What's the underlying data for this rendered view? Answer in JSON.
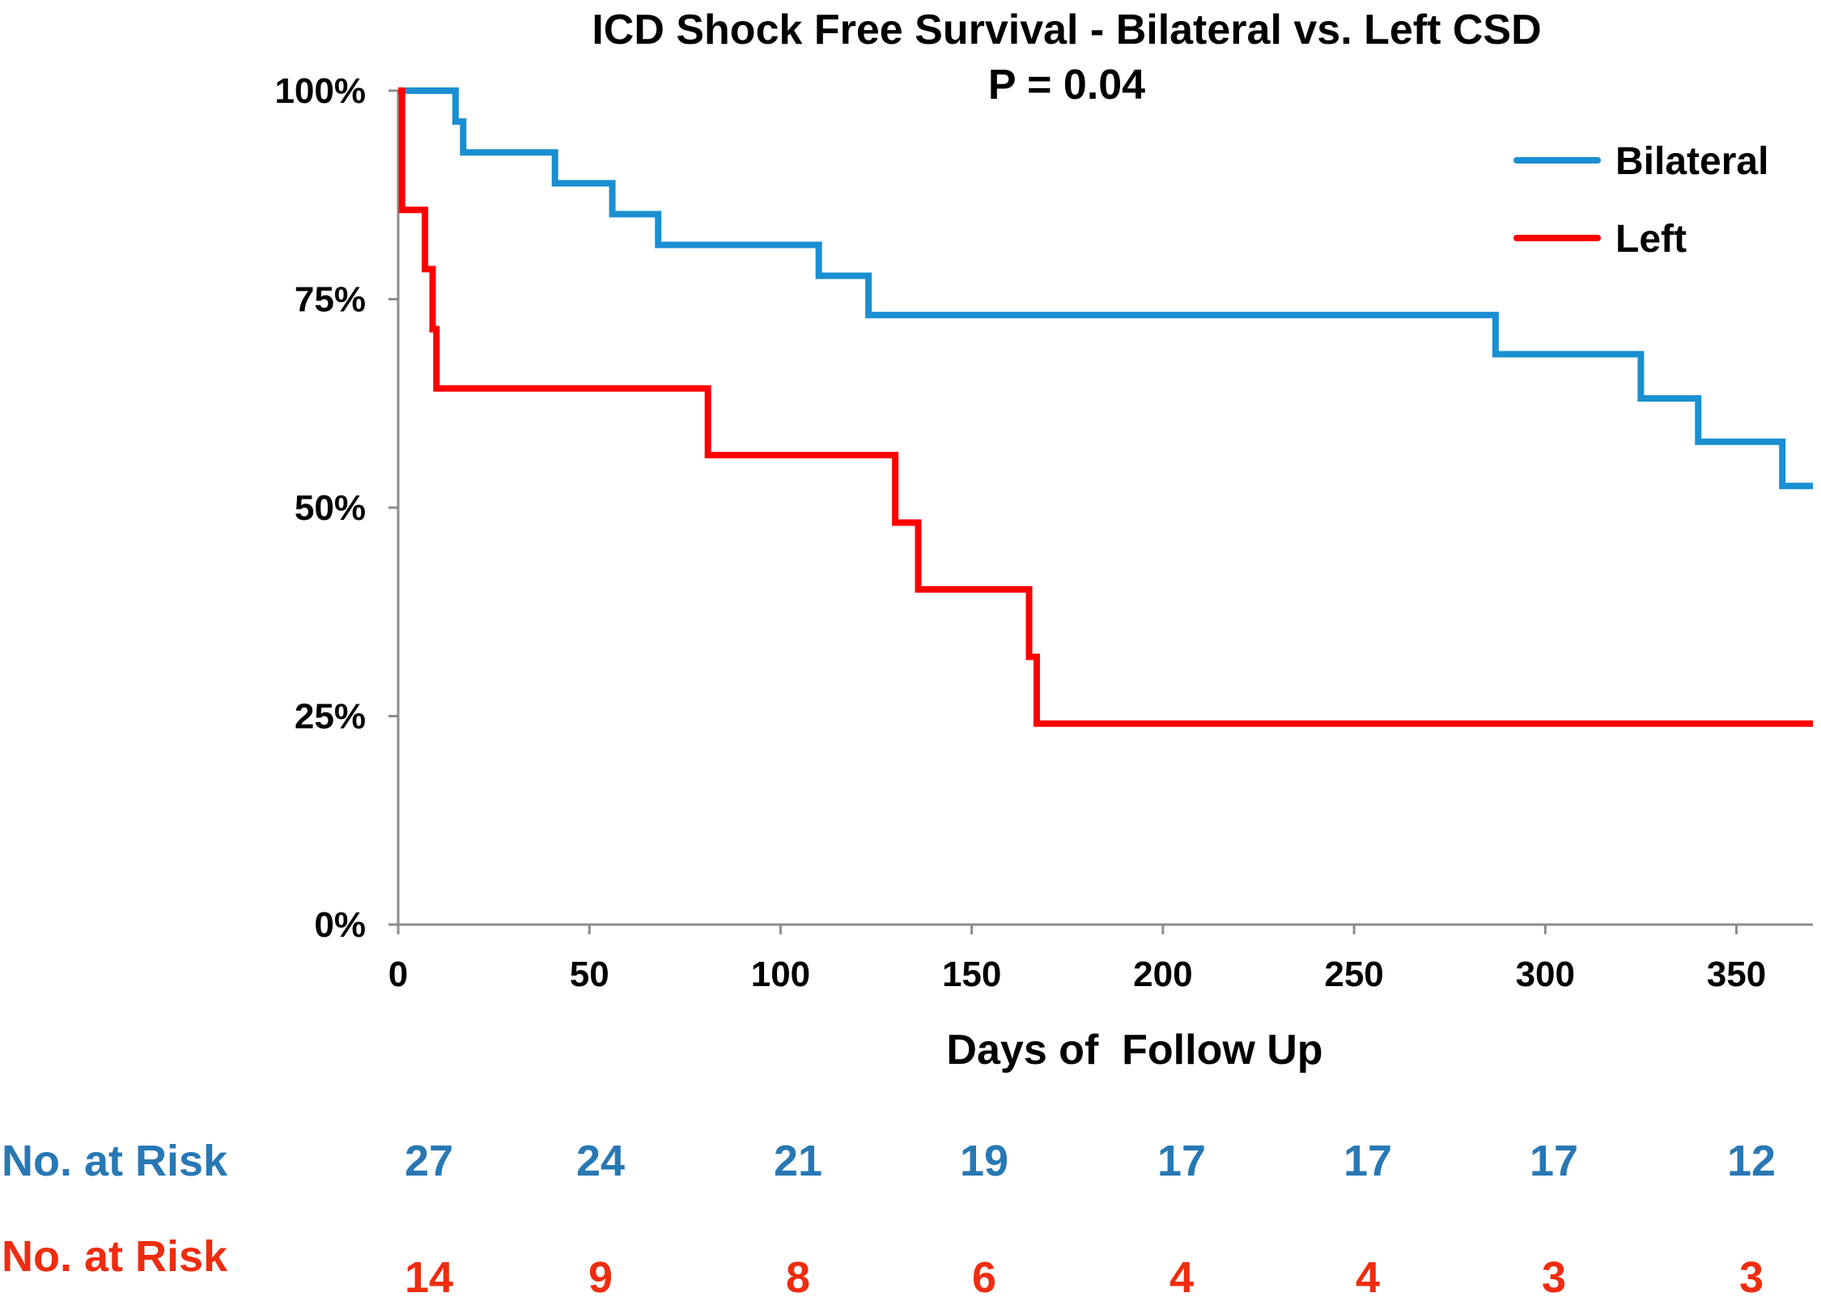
{
  "chart_data": {
    "type": "line",
    "subtype": "kaplan-meier-step",
    "title": "ICD Shock Free Survival - Bilateral vs. Left CSD",
    "subtitle": "P = 0.04",
    "xlabel": "Days of  Follow Up",
    "ylabel": "",
    "xlim": [
      0,
      370
    ],
    "ylim": [
      0,
      100
    ],
    "x_ticks": [
      0,
      50,
      100,
      150,
      200,
      250,
      300,
      350
    ],
    "x_tick_labels": [
      "0",
      "50",
      "100",
      "150",
      "200",
      "250",
      "300",
      "350"
    ],
    "y_ticks": [
      0,
      25,
      50,
      75,
      100
    ],
    "y_tick_labels": [
      "0%",
      "25%",
      "50%",
      "75%",
      "100%"
    ],
    "grid": false,
    "legend_position": "top-right",
    "series": [
      {
        "name": "Bilateral",
        "color": "#1a8fd1",
        "steps": [
          [
            0,
            100
          ],
          [
            15,
            96.3
          ],
          [
            17,
            92.6
          ],
          [
            41,
            88.9
          ],
          [
            56,
            85.2
          ],
          [
            68,
            81.5
          ],
          [
            110,
            77.8
          ],
          [
            123,
            73.1
          ],
          [
            287,
            68.4
          ],
          [
            325,
            63.1
          ],
          [
            340,
            57.9
          ],
          [
            362,
            52.6
          ],
          [
            370,
            52.6
          ]
        ]
      },
      {
        "name": "Left",
        "color": "#ff0000",
        "steps": [
          [
            0,
            100
          ],
          [
            1,
            85.7
          ],
          [
            7,
            78.6
          ],
          [
            9,
            71.4
          ],
          [
            10,
            64.3
          ],
          [
            81,
            56.3
          ],
          [
            130,
            48.2
          ],
          [
            136,
            40.2
          ],
          [
            165,
            32.1
          ],
          [
            167,
            24.1
          ],
          [
            370,
            24.1
          ]
        ]
      }
    ],
    "at_risk": {
      "label": "No. at Risk",
      "rows": [
        {
          "series": "Bilateral",
          "color": "#2878b4",
          "values": [
            "27",
            "24",
            "21",
            "19",
            "17",
            "17",
            "17",
            "12"
          ]
        },
        {
          "series": "Left",
          "color": "#ee2d10",
          "values": [
            "14",
            "9",
            "8",
            "6",
            "4",
            "4",
            "3",
            "3"
          ]
        }
      ]
    }
  }
}
